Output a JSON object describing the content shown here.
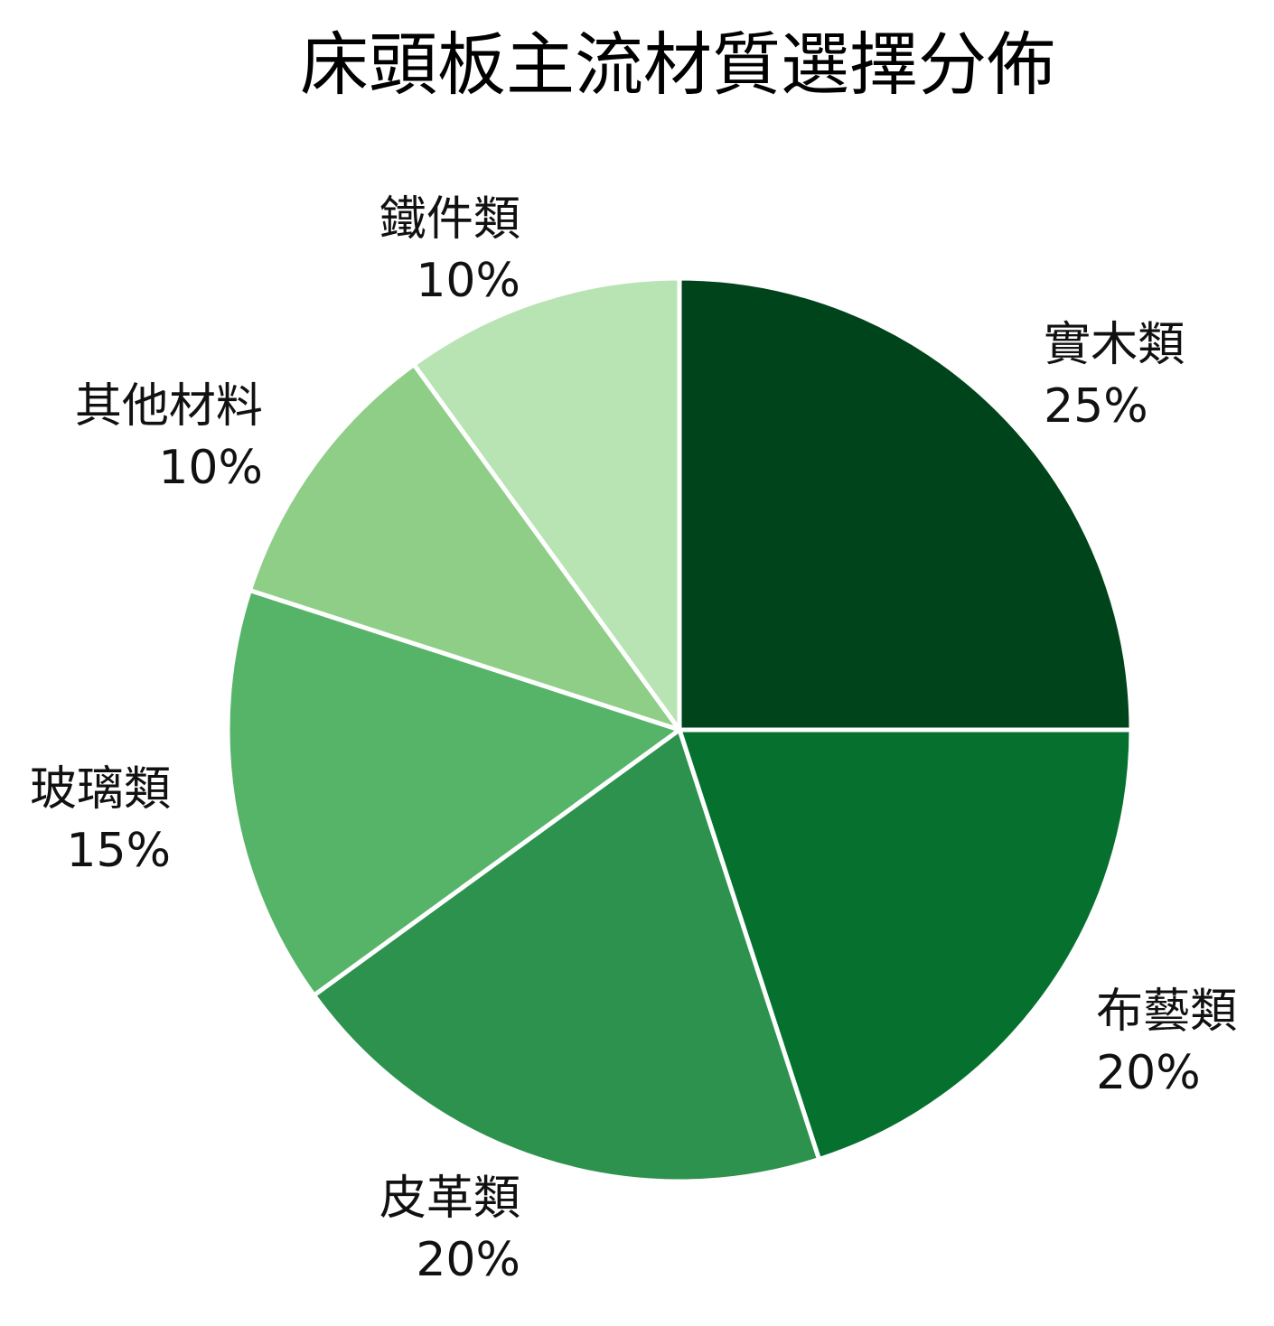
{
  "chart_data": {
    "type": "pie",
    "title": "床頭板主流材質選擇分佈",
    "slices": [
      {
        "label": "實木類",
        "value": 25,
        "value_label": "25%",
        "color": "#00441b"
      },
      {
        "label": "布藝類",
        "value": 20,
        "value_label": "20%",
        "color": "#06712f"
      },
      {
        "label": "皮革類",
        "value": 20,
        "value_label": "20%",
        "color": "#2d924d"
      },
      {
        "label": "玻璃類",
        "value": 15,
        "value_label": "15%",
        "color": "#56b468"
      },
      {
        "label": "其他材料",
        "value": 10,
        "value_label": "10%",
        "color": "#8ece87"
      },
      {
        "label": "鐵件類",
        "value": 10,
        "value_label": "10%",
        "color": "#b8e3b2"
      }
    ],
    "start_angle": "12 o'clock",
    "direction": "clockwise",
    "legend": "none",
    "slice_separator_color": "#ffffff"
  }
}
